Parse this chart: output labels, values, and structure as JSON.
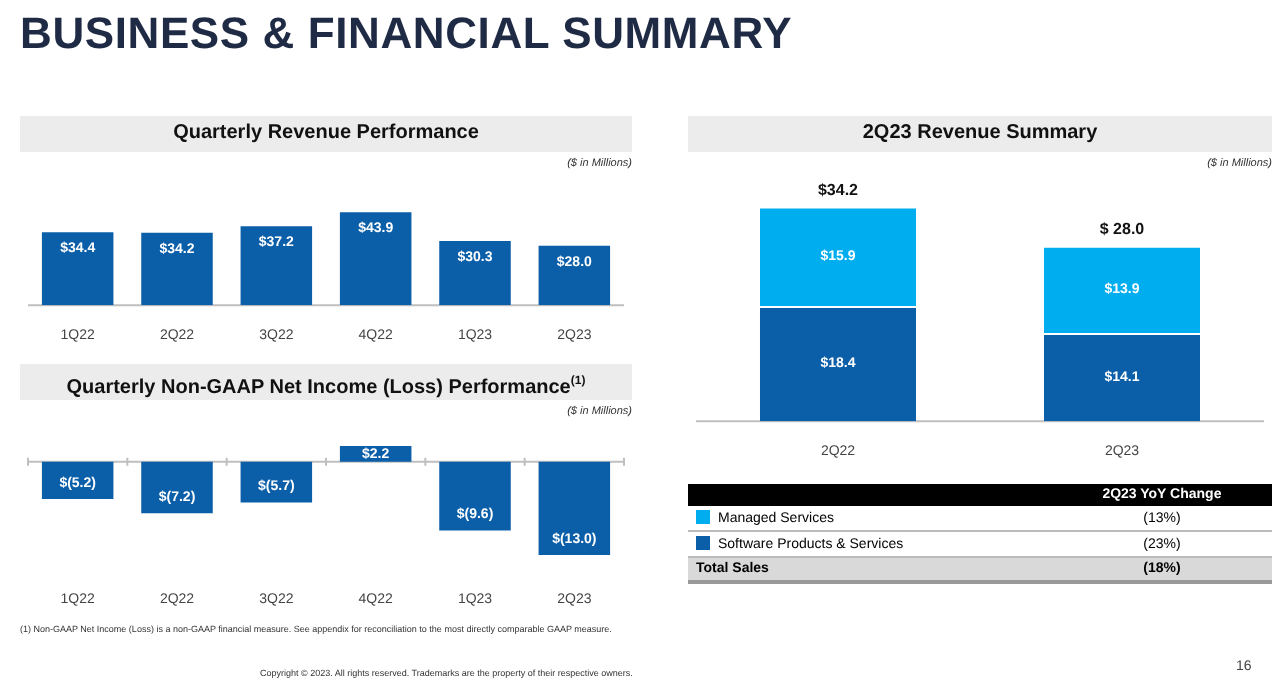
{
  "chart_data": [
    {
      "type": "bar",
      "title": "Quarterly Revenue Performance",
      "subtitle": "($ in Millions)",
      "categories": [
        "1Q22",
        "2Q22",
        "3Q22",
        "4Q22",
        "1Q23",
        "2Q23"
      ],
      "color": "#0b5ea8",
      "values": [
        34.4,
        34.2,
        37.2,
        43.9,
        30.3,
        28.0
      ],
      "value_labels": [
        "$34.4",
        "$34.2",
        "$37.2",
        "$43.9",
        "$30.3",
        "$28.0"
      ],
      "annotations": [
        "BUSINESS & FINANCIAL SUMMARY"
      ]
    },
    {
      "type": "bar",
      "title": "Quarterly Non-GAAP Net Income (Loss) Performance$^{(1)}$",
      "subtitle": "($ in Millions)",
      "categories": [
        "1Q22",
        "2Q22",
        "3Q22",
        "4Q22",
        "1Q23",
        "2Q23"
      ],
      "color": "#0b5ea8",
      "values": [
        -5.2,
        -7.2,
        -5.7,
        2.2,
        -9.6,
        -13.0
      ],
      "value_labels": [
        "$(5.2)",
        "$(7.2)",
        "$(5.7)",
        "$2.2",
        "$(9.6)",
        "$(13.0)"
      ],
      "annotations": [
        "(1) Non-GAAP Net Income (Loss) is a non-GAAP financial measure. See appendix for reconciliation to the most directly comparable GAAP measure."
      ]
    },
    {
      "type": "bar",
      "title": "2Q23 Revenue Summary",
      "subtitle": "($ in Millions)",
      "categories": [
        "2Q22",
        "2Q23"
      ],
      "stacked": true,
      "legend": "bottom",
      "series": [
        {
          "name": "Software Products & Services",
          "color": "#0b5ea8",
          "values": [
            18.4,
            14.1
          ],
          "value_labels": [
            "$18.4",
            "$14.1"
          ]
        },
        {
          "name": "Managed Services",
          "color": "#00adee",
          "values": [
            15.9,
            13.9
          ],
          "value_labels": [
            "$15.9",
            "$13.9"
          ]
        }
      ],
      "totals": [
        "$34.2",
        "$ 28.0"
      ],
      "annotations": [
        "2Q23 YoY Change",
        "(13%)",
        "(23%)",
        "Total Sales",
        "(18%)",
        "Copyright © 2023. All rights reserved. Trademarks are the property of their respective owners.",
        "16"
      ]
    }
  ]
}
